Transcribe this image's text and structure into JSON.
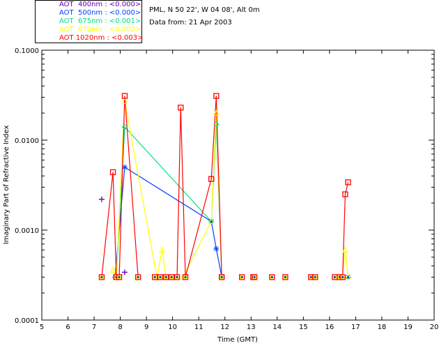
{
  "legend": [
    {
      "label": "AOT  400nm : <0.000>",
      "color": "#6000b0"
    },
    {
      "label": "AOT  500nm : <0.000>",
      "color": "#0040ff"
    },
    {
      "label": "AOT  675nm : <0.001>",
      "color": "#00e080"
    },
    {
      "label": "AOT  870nm : <0.002>",
      "color": "#ffff00"
    },
    {
      "label": "AOT 1020nm : <0.003>",
      "color": "#ff0000"
    }
  ],
  "info": {
    "station": "PML, N 50 22', W 04 08', Alt 0m",
    "date": "Data from: 21 Apr 2003"
  },
  "chart_data": {
    "type": "line",
    "title": "",
    "xlabel": "Time (GMT)",
    "ylabel": "Imaginary Part of Refractive Index",
    "xlim": [
      5,
      20
    ],
    "ylim": [
      0.0001,
      0.1
    ],
    "yscale": "log",
    "xticks": [
      "5",
      "6",
      "7",
      "8",
      "9",
      "10",
      "11",
      "12",
      "13",
      "14",
      "15",
      "16",
      "17",
      "18",
      "19",
      "20"
    ],
    "yticks": [
      "0.0001",
      "0.0010",
      "0.0100",
      "0.1000"
    ],
    "series": [
      {
        "name": "AOT 400nm",
        "color": "#6000b0",
        "marker": "plus",
        "points": [
          [
            7.29,
            0.0022
          ],
          [
            8.17,
            0.00034
          ]
        ]
      },
      {
        "name": "AOT 500nm",
        "color": "#0040ff",
        "marker": "asterisk",
        "points": [
          [
            7.8,
            0.0003
          ],
          [
            8.17,
            0.005
          ],
          [
            11.48,
            0.00125
          ],
          [
            11.67,
            0.00062
          ],
          [
            11.88,
            0.0003
          ],
          [
            16.71,
            0.0003
          ]
        ]
      },
      {
        "name": "AOT 675nm",
        "color": "#00e080",
        "marker": "diamond",
        "points": [
          [
            7.85,
            0.0003
          ],
          [
            8.17,
            0.014
          ],
          [
            11.48,
            0.00125
          ],
          [
            11.67,
            0.015
          ],
          [
            11.88,
            0.0003
          ]
        ]
      },
      {
        "name": "AOT 870nm",
        "color": "#ffff00",
        "marker": "triangle",
        "points": [
          [
            7.72,
            0.00036
          ],
          [
            7.85,
            0.0003
          ],
          [
            8.17,
            0.027
          ],
          [
            9.4,
            0.0003
          ],
          [
            9.6,
            0.0006
          ],
          [
            9.75,
            0.0003
          ],
          [
            10.4,
            0.0003
          ],
          [
            11.48,
            0.00125
          ],
          [
            11.67,
            0.02
          ],
          [
            11.88,
            0.0003
          ],
          [
            16.5,
            0.0003
          ],
          [
            16.6,
            0.0006
          ],
          [
            16.71,
            0.0003
          ]
        ]
      },
      {
        "name": "AOT 1020nm",
        "color": "#ff0000",
        "marker": "square",
        "points": [
          [
            7.29,
            0.0003
          ],
          [
            7.72,
            0.0044
          ],
          [
            7.85,
            0.0003
          ],
          [
            7.96,
            0.0003
          ],
          [
            8.17,
            0.031
          ],
          [
            8.68,
            0.0003
          ],
          [
            9.32,
            0.0003
          ],
          [
            9.53,
            0.0003
          ],
          [
            9.75,
            0.0003
          ],
          [
            9.96,
            0.0003
          ],
          [
            10.17,
            0.0003
          ],
          [
            10.31,
            0.023
          ],
          [
            10.49,
            0.0003
          ],
          [
            11.48,
            0.0037
          ],
          [
            11.67,
            0.031
          ],
          [
            11.88,
            0.0003
          ],
          [
            12.65,
            0.0003
          ],
          [
            13.08,
            0.0003
          ],
          [
            13.13,
            0.0003
          ],
          [
            13.8,
            0.0003
          ],
          [
            14.31,
            0.0003
          ],
          [
            15.29,
            0.0003
          ],
          [
            15.45,
            0.0003
          ],
          [
            16.2,
            0.0003
          ],
          [
            16.39,
            0.0003
          ],
          [
            16.5,
            0.0003
          ],
          [
            16.6,
            0.0025
          ],
          [
            16.71,
            0.0034
          ]
        ]
      }
    ]
  }
}
